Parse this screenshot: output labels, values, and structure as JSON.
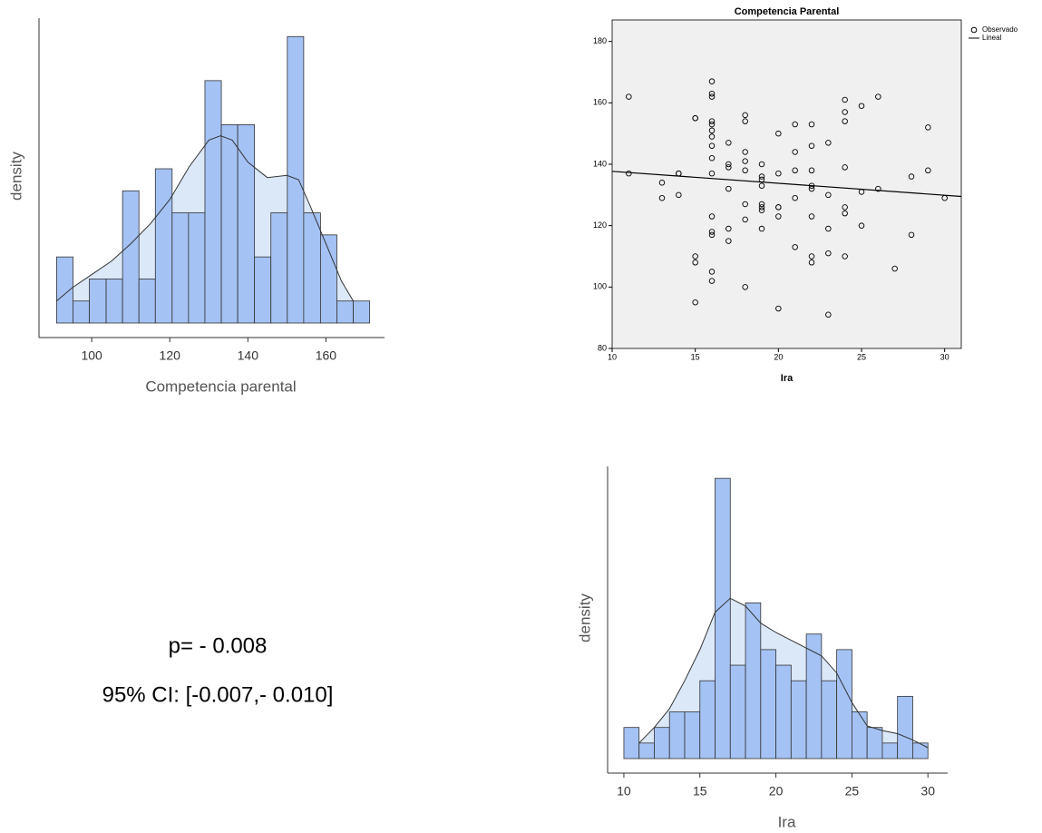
{
  "chart_data": [
    {
      "type": "histogram",
      "xlabel": "Competencia parental",
      "ylabel": "density",
      "bins": [
        91,
        95.2,
        99.4,
        103.7,
        107.9,
        112.1,
        116.3,
        120.6,
        124.8,
        129.0,
        133.2,
        137.4,
        141.7,
        145.9,
        150.1,
        154.3,
        158.6,
        162.8,
        167.0,
        171.2
      ],
      "values": [
        3,
        1,
        2,
        2,
        6,
        2,
        7,
        5,
        5,
        11,
        9,
        9,
        3,
        5,
        13,
        5,
        4,
        1,
        1
      ],
      "color": "#a4c2f4",
      "density": {
        "x": [
          91,
          95,
          100,
          105,
          110,
          115,
          120,
          125,
          130,
          133,
          136,
          140,
          145,
          150,
          153,
          156,
          160,
          164,
          167
        ],
        "values": [
          1,
          1.6,
          2.2,
          2.8,
          3.6,
          4.5,
          5.6,
          7.1,
          8.3,
          8.5,
          8.3,
          7.3,
          6.6,
          6.7,
          6.5,
          5.3,
          3.6,
          1.9,
          1
        ],
        "color": "#dbe8f8"
      },
      "xlim": [
        86.5,
        175
      ],
      "xticks": [
        100,
        120,
        140,
        160
      ],
      "ylim": [
        0,
        14
      ]
    },
    {
      "type": "scatter",
      "title": "Competencia Parental",
      "xlabel": "Ira",
      "background": "#f0f0f0",
      "legend": "right",
      "series": [
        {
          "name": "Observado",
          "color": "#000000",
          "x": [
            11,
            11,
            13,
            13,
            14,
            14,
            14,
            15,
            15,
            15,
            15,
            15,
            16,
            16,
            16,
            16,
            16,
            16,
            16,
            16,
            16,
            16,
            16,
            16,
            16,
            16,
            16,
            17,
            17,
            17,
            17,
            17,
            17,
            18,
            18,
            18,
            18,
            18,
            18,
            18,
            18,
            19,
            19,
            19,
            19,
            19,
            19,
            19,
            19,
            20,
            20,
            20,
            20,
            20,
            20,
            21,
            21,
            21,
            21,
            21,
            22,
            22,
            22,
            22,
            22,
            22,
            22,
            22,
            23,
            23,
            23,
            23,
            23,
            24,
            24,
            24,
            24,
            24,
            24,
            24,
            25,
            25,
            25,
            26,
            26,
            27,
            28,
            28,
            29,
            29,
            30
          ],
          "values": [
            162,
            137,
            134,
            129,
            137,
            137,
            130,
            155,
            155,
            110,
            108,
            95,
            167,
            163,
            162,
            154,
            153,
            151,
            149,
            146,
            142,
            137,
            123,
            118,
            117,
            105,
            102,
            147,
            140,
            139,
            132,
            119,
            115,
            156,
            154,
            144,
            141,
            138,
            127,
            122,
            100,
            140,
            136,
            135,
            133,
            127,
            126,
            125,
            119,
            150,
            137,
            126,
            126,
            123,
            93,
            153,
            144,
            138,
            129,
            113,
            153,
            146,
            138,
            133,
            132,
            123,
            110,
            108,
            147,
            130,
            119,
            111,
            91,
            161,
            157,
            154,
            139,
            126,
            124,
            110,
            159,
            131,
            120,
            162,
            132,
            106,
            136,
            117,
            152,
            138,
            129
          ]
        },
        {
          "name": "Lineal",
          "color": "#000000",
          "x": [
            10,
            31
          ],
          "values": [
            137.7,
            129.5
          ]
        }
      ],
      "xlim": [
        10,
        31
      ],
      "xticks": [
        10,
        15,
        20,
        25,
        30
      ],
      "ylim": [
        80,
        187
      ],
      "yticks": [
        80,
        100,
        120,
        140,
        160,
        180
      ]
    },
    {
      "type": "histogram",
      "xlabel": "Ira",
      "ylabel": "density",
      "bins": [
        10,
        11,
        12,
        13,
        14,
        15,
        16,
        17,
        18,
        19,
        20,
        21,
        22,
        23,
        24,
        25,
        26,
        27,
        28,
        29,
        30
      ],
      "values": [
        2,
        1,
        2,
        3,
        3,
        5,
        18,
        6,
        10,
        7,
        6,
        5,
        8,
        5,
        7,
        3,
        2,
        1,
        4,
        1
      ],
      "color": "#a4c2f4",
      "density": {
        "x": [
          11,
          12,
          13,
          14,
          15,
          16,
          17,
          18,
          19,
          20,
          21,
          22,
          23,
          24,
          25,
          26,
          27,
          28,
          29,
          30
        ],
        "values": [
          1,
          2,
          3.2,
          5,
          7,
          9.4,
          10.3,
          9.8,
          8.7,
          8.1,
          7.6,
          7.1,
          6.6,
          5.5,
          3.6,
          2.1,
          1.8,
          1.6,
          1.2,
          0.7
        ],
        "color": "#dbe8f8"
      },
      "xlim": [
        8.93,
        31.3
      ],
      "xticks": [
        10,
        15,
        20,
        25,
        30
      ],
      "ylim": [
        0,
        19
      ]
    }
  ],
  "annotations": [
    "p= - 0.008",
    "95% CI: [-0.007,- 0.010]"
  ]
}
